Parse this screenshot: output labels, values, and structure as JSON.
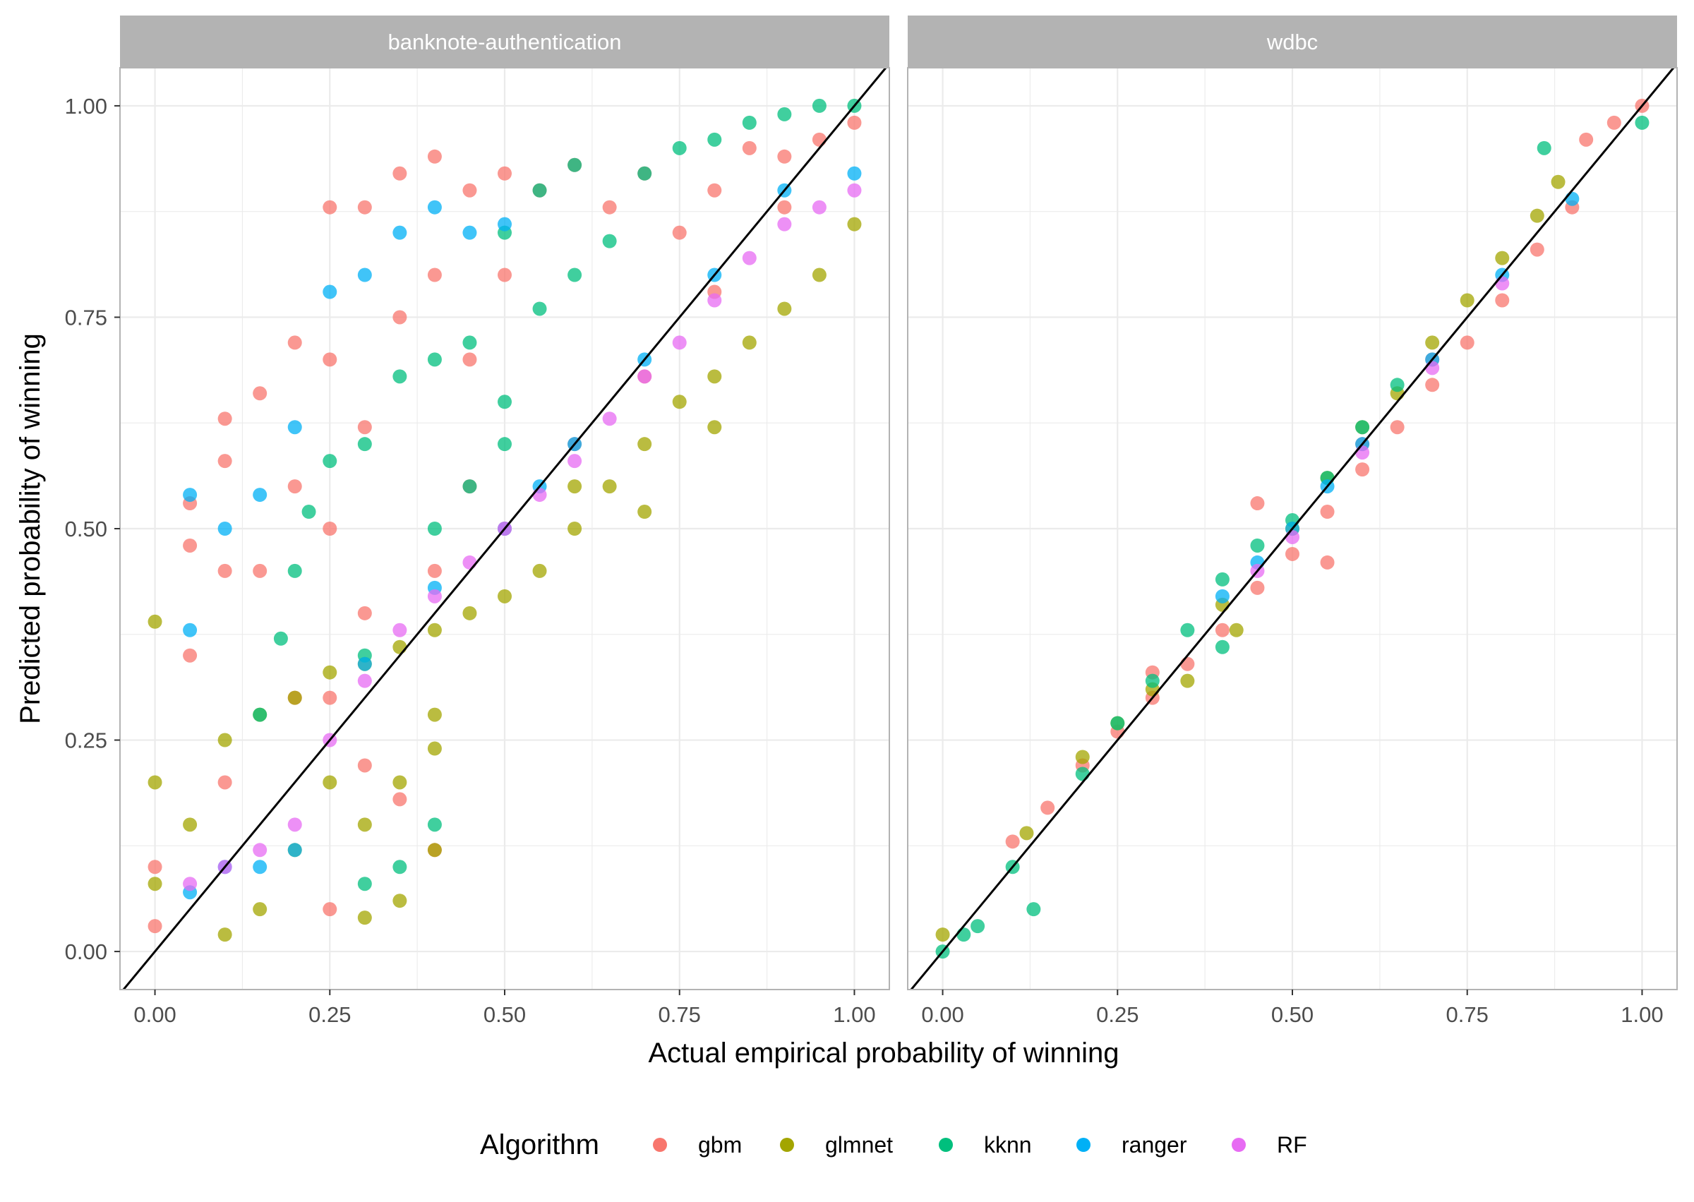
{
  "figure": {
    "xlabel": "Actual empirical probability of winning",
    "ylabel": "Predicted probability of winning",
    "legend_title": "Algorithm",
    "legend_position": "bottom"
  },
  "colors": {
    "gbm": "#F8766D",
    "glmnet": "#A3A500",
    "kknn": "#00BF7D",
    "ranger": "#00B0F6",
    "RF": "#E76BF3",
    "strip_bg": "#B3B3B3",
    "grid": "#EBEBEB",
    "panel_border": "#B3B3B3",
    "reference_line": "#000000"
  },
  "chart_data": [
    {
      "type": "scatter",
      "facet": "banknote-authentication",
      "xlim": [
        -0.05,
        1.05
      ],
      "ylim": [
        -0.045,
        1.045
      ],
      "x_ticks": [
        0,
        0.25,
        0.5,
        0.75,
        1
      ],
      "y_ticks": [
        0,
        0.25,
        0.5,
        0.75,
        1
      ],
      "x_tick_labels": [
        "0.00",
        "0.25",
        "0.50",
        "0.75",
        "1.00"
      ],
      "y_tick_labels": [
        "0.00",
        "0.25",
        "0.50",
        "0.75",
        "1.00"
      ],
      "grid": true,
      "reference_line": "y = x",
      "series": [
        {
          "name": "gbm",
          "points": [
            [
              0,
              0.03
            ],
            [
              0,
              0.1
            ],
            [
              0.05,
              0.35
            ],
            [
              0.05,
              0.48
            ],
            [
              0.05,
              0.53
            ],
            [
              0.1,
              0.45
            ],
            [
              0.1,
              0.58
            ],
            [
              0.1,
              0.63
            ],
            [
              0.15,
              0.66
            ],
            [
              0.15,
              0.45
            ],
            [
              0.2,
              0.72
            ],
            [
              0.2,
              0.55
            ],
            [
              0.25,
              0.88
            ],
            [
              0.25,
              0.7
            ],
            [
              0.25,
              0.5
            ],
            [
              0.25,
              0.3
            ],
            [
              0.25,
              0.05
            ],
            [
              0.3,
              0.88
            ],
            [
              0.3,
              0.62
            ],
            [
              0.3,
              0.22
            ],
            [
              0.35,
              0.92
            ],
            [
              0.35,
              0.75
            ],
            [
              0.35,
              0.18
            ],
            [
              0.4,
              0.94
            ],
            [
              0.4,
              0.8
            ],
            [
              0.4,
              0.12
            ],
            [
              0.45,
              0.9
            ],
            [
              0.45,
              0.7
            ],
            [
              0.5,
              0.92
            ],
            [
              0.5,
              0.8
            ],
            [
              0.55,
              0.9
            ],
            [
              0.6,
              0.93
            ],
            [
              0.65,
              0.88
            ],
            [
              0.7,
              0.92
            ],
            [
              0.75,
              0.85
            ],
            [
              0.8,
              0.9
            ],
            [
              0.85,
              0.95
            ],
            [
              0.9,
              0.94
            ],
            [
              0.95,
              0.96
            ],
            [
              1.0,
              0.98
            ],
            [
              0.3,
              0.4
            ],
            [
              0.4,
              0.45
            ],
            [
              0.5,
              0.5
            ],
            [
              0.6,
              0.6
            ],
            [
              0.7,
              0.68
            ],
            [
              0.8,
              0.78
            ],
            [
              0.9,
              0.88
            ],
            [
              0.2,
              0.3
            ],
            [
              0.1,
              0.2
            ],
            [
              0.45,
              0.55
            ]
          ]
        },
        {
          "name": "glmnet",
          "points": [
            [
              0,
              0.39
            ],
            [
              0,
              0.2
            ],
            [
              0,
              0.08
            ],
            [
              0.05,
              0.15
            ],
            [
              0.1,
              0.25
            ],
            [
              0.15,
              0.28
            ],
            [
              0.2,
              0.3
            ],
            [
              0.25,
              0.33
            ],
            [
              0.3,
              0.34
            ],
            [
              0.35,
              0.36
            ],
            [
              0.4,
              0.38
            ],
            [
              0.45,
              0.4
            ],
            [
              0.5,
              0.42
            ],
            [
              0.55,
              0.45
            ],
            [
              0.6,
              0.5
            ],
            [
              0.65,
              0.55
            ],
            [
              0.7,
              0.6
            ],
            [
              0.75,
              0.65
            ],
            [
              0.8,
              0.68
            ],
            [
              0.85,
              0.72
            ],
            [
              0.9,
              0.76
            ],
            [
              0.95,
              0.8
            ],
            [
              1.0,
              0.86
            ],
            [
              0.4,
              0.28
            ],
            [
              0.4,
              0.12
            ],
            [
              0.35,
              0.2
            ],
            [
              0.3,
              0.15
            ],
            [
              0.25,
              0.2
            ],
            [
              0.2,
              0.12
            ],
            [
              0.15,
              0.05
            ],
            [
              0.1,
              0.02
            ],
            [
              0.3,
              0.04
            ],
            [
              0.35,
              0.06
            ],
            [
              0.4,
              0.24
            ],
            [
              0.6,
              0.55
            ],
            [
              0.7,
              0.52
            ],
            [
              0.8,
              0.62
            ]
          ]
        },
        {
          "name": "kknn",
          "points": [
            [
              0.15,
              0.28
            ],
            [
              0.18,
              0.37
            ],
            [
              0.2,
              0.45
            ],
            [
              0.22,
              0.52
            ],
            [
              0.25,
              0.58
            ],
            [
              0.3,
              0.6
            ],
            [
              0.35,
              0.68
            ],
            [
              0.4,
              0.7
            ],
            [
              0.45,
              0.72
            ],
            [
              0.5,
              0.65
            ],
            [
              0.5,
              0.85
            ],
            [
              0.55,
              0.76
            ],
            [
              0.55,
              0.9
            ],
            [
              0.6,
              0.8
            ],
            [
              0.6,
              0.93
            ],
            [
              0.65,
              0.84
            ],
            [
              0.7,
              0.92
            ],
            [
              0.75,
              0.95
            ],
            [
              0.8,
              0.96
            ],
            [
              0.85,
              0.98
            ],
            [
              0.9,
              0.99
            ],
            [
              0.95,
              1.0
            ],
            [
              1.0,
              1.0
            ],
            [
              0.3,
              0.08
            ],
            [
              0.35,
              0.1
            ],
            [
              0.4,
              0.15
            ],
            [
              0.3,
              0.35
            ],
            [
              0.4,
              0.5
            ],
            [
              0.45,
              0.55
            ],
            [
              0.5,
              0.6
            ]
          ]
        },
        {
          "name": "ranger",
          "points": [
            [
              0.05,
              0.38
            ],
            [
              0.05,
              0.54
            ],
            [
              0.1,
              0.5
            ],
            [
              0.15,
              0.54
            ],
            [
              0.2,
              0.62
            ],
            [
              0.25,
              0.78
            ],
            [
              0.3,
              0.8
            ],
            [
              0.35,
              0.85
            ],
            [
              0.4,
              0.88
            ],
            [
              0.45,
              0.85
            ],
            [
              0.5,
              0.86
            ],
            [
              0.55,
              0.55
            ],
            [
              0.6,
              0.6
            ],
            [
              0.7,
              0.7
            ],
            [
              0.8,
              0.8
            ],
            [
              0.9,
              0.9
            ],
            [
              1.0,
              0.92
            ],
            [
              0.05,
              0.07
            ],
            [
              0.1,
              0.1
            ],
            [
              0.15,
              0.1
            ],
            [
              0.2,
              0.12
            ],
            [
              0.3,
              0.34
            ],
            [
              0.4,
              0.43
            ],
            [
              0.5,
              0.5
            ]
          ]
        },
        {
          "name": "RF",
          "points": [
            [
              0.05,
              0.08
            ],
            [
              0.1,
              0.1
            ],
            [
              0.15,
              0.12
            ],
            [
              0.2,
              0.15
            ],
            [
              0.25,
              0.25
            ],
            [
              0.3,
              0.32
            ],
            [
              0.35,
              0.38
            ],
            [
              0.4,
              0.42
            ],
            [
              0.45,
              0.46
            ],
            [
              0.5,
              0.5
            ],
            [
              0.55,
              0.54
            ],
            [
              0.6,
              0.58
            ],
            [
              0.65,
              0.63
            ],
            [
              0.7,
              0.68
            ],
            [
              0.75,
              0.72
            ],
            [
              0.8,
              0.77
            ],
            [
              0.85,
              0.82
            ],
            [
              0.9,
              0.86
            ],
            [
              0.95,
              0.88
            ],
            [
              1.0,
              0.9
            ]
          ]
        }
      ]
    },
    {
      "type": "scatter",
      "facet": "wdbc",
      "xlim": [
        -0.05,
        1.05
      ],
      "ylim": [
        -0.045,
        1.045
      ],
      "x_ticks": [
        0,
        0.25,
        0.5,
        0.75,
        1
      ],
      "y_ticks": [
        0,
        0.25,
        0.5,
        0.75,
        1
      ],
      "x_tick_labels": [
        "0.00",
        "0.25",
        "0.50",
        "0.75",
        "1.00"
      ],
      "y_tick_labels": [
        "0.00",
        "0.25",
        "0.50",
        "0.75",
        "1.00"
      ],
      "grid": true,
      "reference_line": "y = x",
      "series": [
        {
          "name": "gbm",
          "points": [
            [
              0.1,
              0.13
            ],
            [
              0.15,
              0.17
            ],
            [
              0.2,
              0.22
            ],
            [
              0.25,
              0.26
            ],
            [
              0.3,
              0.3
            ],
            [
              0.35,
              0.34
            ],
            [
              0.4,
              0.38
            ],
            [
              0.45,
              0.43
            ],
            [
              0.5,
              0.47
            ],
            [
              0.55,
              0.52
            ],
            [
              0.6,
              0.57
            ],
            [
              0.65,
              0.62
            ],
            [
              0.7,
              0.67
            ],
            [
              0.75,
              0.72
            ],
            [
              0.8,
              0.77
            ],
            [
              0.85,
              0.83
            ],
            [
              0.9,
              0.88
            ],
            [
              0.92,
              0.96
            ],
            [
              0.96,
              0.98
            ],
            [
              1.0,
              1.0
            ],
            [
              0.45,
              0.53
            ],
            [
              0.55,
              0.46
            ],
            [
              0.3,
              0.33
            ],
            [
              0.7,
              0.7
            ],
            [
              0.6,
              0.6
            ]
          ]
        },
        {
          "name": "glmnet",
          "points": [
            [
              0,
              0.02
            ],
            [
              0.12,
              0.14
            ],
            [
              0.2,
              0.23
            ],
            [
              0.3,
              0.31
            ],
            [
              0.4,
              0.41
            ],
            [
              0.5,
              0.5
            ],
            [
              0.55,
              0.56
            ],
            [
              0.6,
              0.62
            ],
            [
              0.65,
              0.66
            ],
            [
              0.7,
              0.72
            ],
            [
              0.75,
              0.77
            ],
            [
              0.8,
              0.82
            ],
            [
              0.85,
              0.87
            ],
            [
              0.88,
              0.91
            ],
            [
              0.42,
              0.38
            ],
            [
              0.35,
              0.32
            ],
            [
              0.25,
              0.27
            ]
          ]
        },
        {
          "name": "kknn",
          "points": [
            [
              0,
              0.0
            ],
            [
              0.03,
              0.02
            ],
            [
              0.05,
              0.03
            ],
            [
              0.1,
              0.1
            ],
            [
              0.13,
              0.05
            ],
            [
              0.2,
              0.21
            ],
            [
              0.25,
              0.27
            ],
            [
              0.3,
              0.32
            ],
            [
              0.35,
              0.38
            ],
            [
              0.4,
              0.44
            ],
            [
              0.45,
              0.48
            ],
            [
              0.5,
              0.51
            ],
            [
              0.55,
              0.56
            ],
            [
              0.6,
              0.62
            ],
            [
              0.65,
              0.67
            ],
            [
              0.86,
              0.95
            ],
            [
              1.0,
              0.98
            ],
            [
              0.4,
              0.36
            ]
          ]
        },
        {
          "name": "ranger",
          "points": [
            [
              0.4,
              0.42
            ],
            [
              0.45,
              0.46
            ],
            [
              0.5,
              0.5
            ],
            [
              0.55,
              0.55
            ],
            [
              0.6,
              0.6
            ],
            [
              0.7,
              0.7
            ],
            [
              0.8,
              0.8
            ],
            [
              0.9,
              0.89
            ]
          ]
        },
        {
          "name": "RF",
          "points": [
            [
              0.45,
              0.45
            ],
            [
              0.5,
              0.49
            ],
            [
              0.6,
              0.59
            ],
            [
              0.7,
              0.69
            ],
            [
              0.8,
              0.79
            ]
          ]
        }
      ]
    }
  ]
}
